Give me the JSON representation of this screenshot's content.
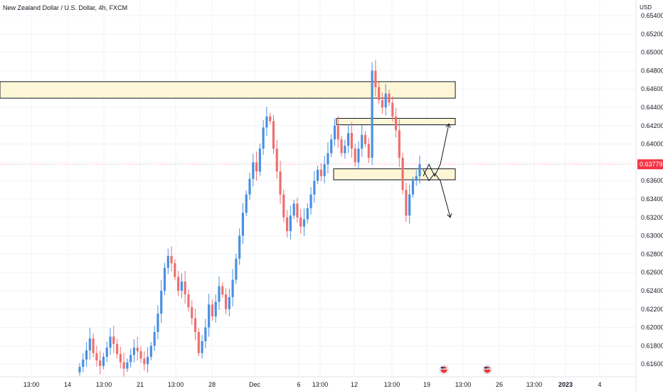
{
  "header": {
    "title": "New Zealand Dollar / U.S. Dollar, 4h, FXCM",
    "currency": "USD"
  },
  "price_axis": {
    "ticks": [
      "0.65400",
      "0.65200",
      "0.65000",
      "0.64800",
      "0.64600",
      "0.64400",
      "0.64200",
      "0.64000",
      "0.63800",
      "0.63600",
      "0.63400",
      "0.63200",
      "0.63000",
      "0.62800",
      "0.62600",
      "0.62400",
      "0.62200",
      "0.62000",
      "0.61800",
      "0.61600"
    ],
    "current_price": "0.63779"
  },
  "time_axis": {
    "labels": [
      "13:00",
      "14",
      "13:00",
      "21",
      "13:00",
      "28",
      "Dec",
      "6",
      "13:00",
      "12",
      "13:00",
      "19",
      "13:00",
      "26",
      "13:00",
      "2023",
      "4"
    ]
  },
  "colors": {
    "up": "#4a90e2",
    "down": "#ef6f6f",
    "zone_fill": "#fdf7d8",
    "zone_border": "#131722",
    "current_price": "#f23645",
    "grid": "#f0f3fa"
  },
  "chart_data": {
    "type": "candlestick",
    "title": "New Zealand Dollar / U.S. Dollar, 4h, FXCM",
    "ylabel": "USD",
    "ylim": [
      0.6145,
      0.6548
    ],
    "y_ticks": [
      0.654,
      0.652,
      0.65,
      0.648,
      0.646,
      0.644,
      0.642,
      0.64,
      0.638,
      0.636,
      0.634,
      0.632,
      0.63,
      0.628,
      0.626,
      0.624,
      0.622,
      0.62,
      0.618,
      0.616
    ],
    "current_price": 0.63779,
    "bar_closes": [
      0.6157,
      0.6165,
      0.6175,
      0.6188,
      0.6172,
      0.6164,
      0.6158,
      0.6168,
      0.6178,
      0.619,
      0.6182,
      0.6171,
      0.6162,
      0.6155,
      0.6162,
      0.617,
      0.6178,
      0.6174,
      0.6166,
      0.616,
      0.6168,
      0.618,
      0.6195,
      0.6215,
      0.624,
      0.6265,
      0.6278,
      0.627,
      0.6255,
      0.624,
      0.625,
      0.6236,
      0.6222,
      0.621,
      0.6195,
      0.6172,
      0.6185,
      0.62,
      0.6225,
      0.6212,
      0.6228,
      0.6245,
      0.6236,
      0.622,
      0.6233,
      0.6252,
      0.6275,
      0.63,
      0.6325,
      0.6345,
      0.6362,
      0.638,
      0.637,
      0.6395,
      0.6418,
      0.643,
      0.6425,
      0.6395,
      0.637,
      0.6345,
      0.632,
      0.6305,
      0.6322,
      0.6335,
      0.632,
      0.631,
      0.6318,
      0.633,
      0.6345,
      0.636,
      0.6372,
      0.6365,
      0.6378,
      0.639,
      0.6405,
      0.642,
      0.6405,
      0.639,
      0.6398,
      0.6412,
      0.6395,
      0.638,
      0.6395,
      0.641,
      0.64,
      0.6385,
      0.648,
      0.6462,
      0.6448,
      0.644,
      0.6455,
      0.6445,
      0.643,
      0.6415,
      0.6385,
      0.635,
      0.6322,
      0.6345,
      0.636,
      0.6365,
      0.6378
    ],
    "drawings": {
      "horizontal_zones": [
        {
          "from": 0.645,
          "to": 0.6468
        },
        {
          "from": 0.6421,
          "to": 0.6428
        },
        {
          "from": 0.6361,
          "to": 0.6373
        }
      ],
      "scenario_paths": [
        {
          "direction": "up",
          "points": [
            0.6365,
            0.6378,
            0.6365,
            0.6378,
            0.6422
          ]
        },
        {
          "direction": "down",
          "points": [
            0.6372,
            0.636,
            0.6368,
            0.636,
            0.632
          ]
        }
      ]
    }
  }
}
